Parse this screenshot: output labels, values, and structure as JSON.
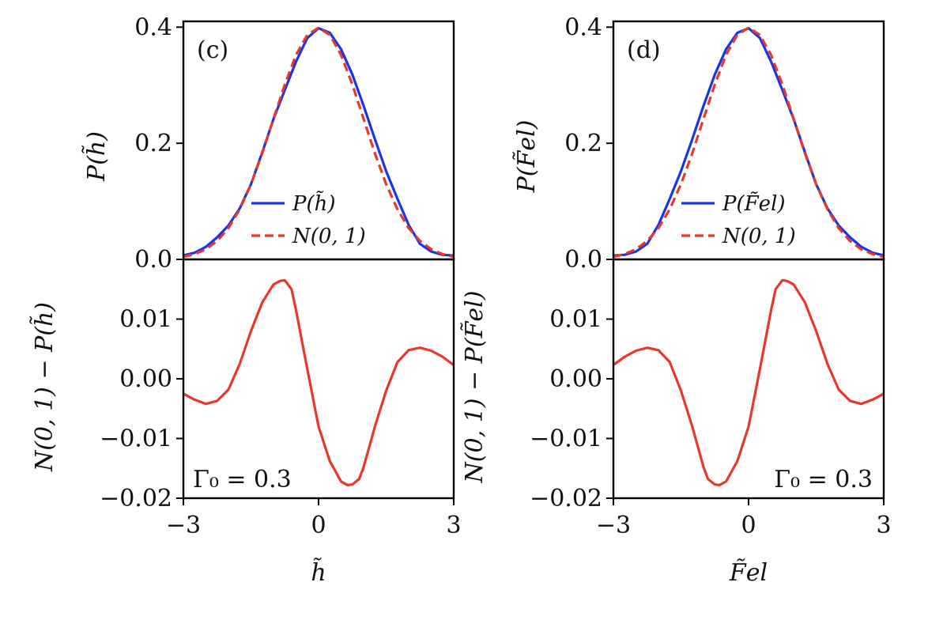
{
  "chart_data": [
    {
      "type": "line",
      "panel": "(c)",
      "xlabel": "h̃",
      "top": {
        "ylabel": "P(h̃)",
        "ylim": [
          0,
          0.41
        ],
        "yticks": [
          "0.0",
          "0.2",
          "0.4"
        ],
        "legend": {
          "placement": "lower-right",
          "entries": [
            "P(h̃)",
            "N(0, 1)"
          ]
        },
        "series": [
          {
            "name": "P(h̃)",
            "color": "#1a35e6",
            "style": "solid",
            "x": [
              -3,
              -2.75,
              -2.5,
              -2.25,
              -2,
              -1.75,
              -1.5,
              -1.25,
              -1,
              -0.75,
              -0.5,
              -0.25,
              0,
              0.25,
              0.5,
              0.75,
              1,
              1.25,
              1.5,
              1.75,
              2,
              2.25,
              2.5,
              2.75,
              3
            ],
            "y": [
              0.0069,
              0.0115,
              0.0217,
              0.0381,
              0.0585,
              0.0878,
              0.1295,
              0.1844,
              0.2418,
              0.2918,
              0.3406,
              0.3814,
              0.3981,
              0.3903,
              0.3619,
              0.3183,
              0.2645,
              0.2071,
              0.152,
              0.1043,
              0.0594,
              0.0268,
              0.0135,
              0.0079,
              0.0066
            ]
          },
          {
            "name": "N(0, 1)",
            "color": "#e8372b",
            "style": "dashed",
            "x": [
              -3,
              -2.75,
              -2.5,
              -2.25,
              -2,
              -1.75,
              -1.5,
              -1.25,
              -1,
              -0.75,
              -0.5,
              -0.25,
              0,
              0.25,
              0.5,
              0.75,
              1,
              1.25,
              1.5,
              1.75,
              2,
              2.25,
              2.5,
              2.75,
              3
            ],
            "y": [
              0.0044,
              0.0091,
              0.0175,
              0.0317,
              0.054,
              0.0863,
              0.1295,
              0.1826,
              0.242,
              0.3011,
              0.3521,
              0.3867,
              0.3989,
              0.3867,
              0.3521,
              0.3011,
              0.242,
              0.1826,
              0.1295,
              0.0863,
              0.054,
              0.0317,
              0.0175,
              0.0091,
              0.0044
            ]
          }
        ]
      },
      "bottom": {
        "ylabel": "N(0, 1) − P(h̃)",
        "ylim": [
          -0.02,
          0.02
        ],
        "yticks": [
          "−0.02",
          "−0.01",
          "0.00",
          "0.01"
        ],
        "annotation": "Γ₀ = 0.3",
        "series": [
          {
            "name": "N(0, 1) − P(h̃)",
            "color": "#e8372b",
            "style": "solid",
            "x": [
              -3,
              -2.75,
              -2.5,
              -2.25,
              -2,
              -1.75,
              -1.5,
              -1.25,
              -1,
              -0.85,
              -0.75,
              -0.6,
              -0.5,
              -0.25,
              0,
              0.25,
              0.5,
              0.65,
              0.75,
              0.9,
              1,
              1.25,
              1.5,
              1.75,
              2,
              2.25,
              2.5,
              2.75,
              3
            ],
            "y": [
              -0.0025,
              -0.0035,
              -0.0042,
              -0.0037,
              -0.0018,
              0.0025,
              0.008,
              0.0128,
              0.0158,
              0.0164,
              0.0165,
              0.015,
              0.0115,
              0.0016,
              -0.008,
              -0.0138,
              -0.0172,
              -0.0178,
              -0.0177,
              -0.0168,
              -0.0148,
              -0.008,
              -0.002,
              0.0028,
              0.0048,
              0.0052,
              0.0047,
              0.0037,
              0.0023
            ]
          }
        ]
      }
    },
    {
      "type": "line",
      "panel": "(d)",
      "xlabel": "F̃el",
      "top": {
        "ylabel": "P(F̃el)",
        "ylim": [
          0,
          0.41
        ],
        "yticks": [
          "0.0",
          "0.2",
          "0.4"
        ],
        "legend": {
          "placement": "lower-right",
          "entries": [
            "P(F̃el)",
            "N(0, 1)"
          ]
        },
        "series": [
          {
            "name": "P(F̃el)",
            "color": "#1a35e6",
            "style": "solid",
            "x": [
              -3,
              -2.75,
              -2.5,
              -2.25,
              -2,
              -1.75,
              -1.5,
              -1.25,
              -1,
              -0.75,
              -0.5,
              -0.25,
              0,
              0.25,
              0.5,
              0.75,
              1,
              1.25,
              1.5,
              1.75,
              2,
              2.25,
              2.5,
              2.75,
              3
            ],
            "y": [
              0.0066,
              0.0079,
              0.0135,
              0.0268,
              0.0594,
              0.1043,
              0.152,
              0.2071,
              0.2645,
              0.3183,
              0.3619,
              0.3903,
              0.3981,
              0.3814,
              0.3406,
              0.2918,
              0.2418,
              0.1844,
              0.1295,
              0.0878,
              0.0585,
              0.0381,
              0.0217,
              0.0115,
              0.0069
            ]
          },
          {
            "name": "N(0, 1)",
            "color": "#e8372b",
            "style": "dashed",
            "x": [
              -3,
              -2.75,
              -2.5,
              -2.25,
              -2,
              -1.75,
              -1.5,
              -1.25,
              -1,
              -0.75,
              -0.5,
              -0.25,
              0,
              0.25,
              0.5,
              0.75,
              1,
              1.25,
              1.5,
              1.75,
              2,
              2.25,
              2.5,
              2.75,
              3
            ],
            "y": [
              0.0044,
              0.0091,
              0.0175,
              0.0317,
              0.054,
              0.0863,
              0.1295,
              0.1826,
              0.242,
              0.3011,
              0.3521,
              0.3867,
              0.3989,
              0.3867,
              0.3521,
              0.3011,
              0.242,
              0.1826,
              0.1295,
              0.0863,
              0.054,
              0.0317,
              0.0175,
              0.0091,
              0.0044
            ]
          }
        ]
      },
      "bottom": {
        "ylabel": "N(0, 1) − P(F̃el)",
        "ylim": [
          -0.02,
          0.02
        ],
        "yticks": [
          "−0.02",
          "−0.01",
          "0.00",
          "0.01"
        ],
        "annotation": "Γ₀ = 0.3",
        "series": [
          {
            "name": "N(0, 1) − P(F̃el)",
            "color": "#e8372b",
            "style": "solid",
            "x": [
              -3,
              -2.75,
              -2.5,
              -2.25,
              -2,
              -1.75,
              -1.5,
              -1.25,
              -1,
              -0.9,
              -0.75,
              -0.65,
              -0.5,
              -0.25,
              0,
              0.25,
              0.5,
              0.6,
              0.75,
              0.85,
              1,
              1.25,
              1.5,
              1.75,
              2,
              2.25,
              2.5,
              2.75,
              3
            ],
            "y": [
              0.0023,
              0.0037,
              0.0047,
              0.0052,
              0.0048,
              0.0028,
              -0.002,
              -0.008,
              -0.0148,
              -0.0168,
              -0.0177,
              -0.0178,
              -0.0172,
              -0.0138,
              -0.008,
              0.0016,
              0.0115,
              0.015,
              0.0165,
              0.0164,
              0.0158,
              0.0128,
              0.008,
              0.0025,
              -0.0018,
              -0.0037,
              -0.0042,
              -0.0035,
              -0.0025
            ]
          }
        ]
      }
    }
  ],
  "x_tick_labels": [
    "−3",
    "0",
    "3"
  ],
  "xlim": [
    -3,
    3
  ]
}
